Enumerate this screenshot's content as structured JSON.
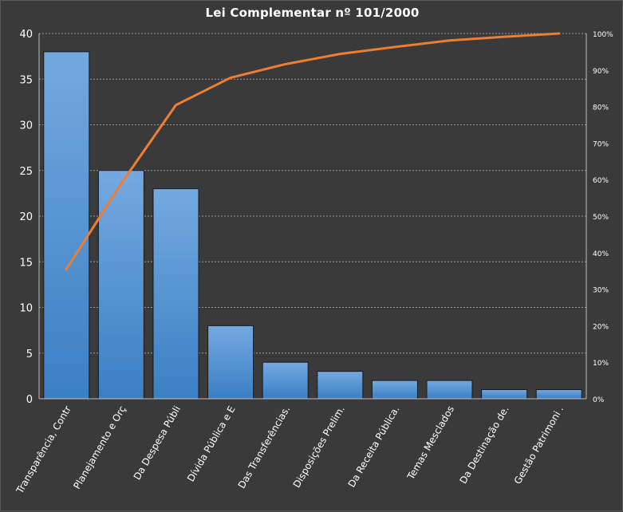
{
  "chart_data": {
    "type": "bar",
    "title": "Lei Complementar nº 101/2000",
    "categories": [
      "Transparência, Contr",
      "Planejamento e Orç",
      "Da Despesa Públi",
      "Dívida Pública e E",
      "Das Transferências.",
      "Disposições Prelim.",
      "Da Receita Pública.",
      "Temas Mesclados",
      "Da Destinação de.",
      "Gestão Patrimoni ."
    ],
    "values": [
      38,
      25,
      23,
      8,
      4,
      3,
      2,
      2,
      1,
      1
    ],
    "cumulative_percent": [
      35.5,
      58.9,
      80.4,
      87.9,
      91.6,
      94.4,
      96.3,
      98.1,
      99.1,
      100
    ],
    "ylim": [
      0,
      40
    ],
    "yticks": [
      0,
      5,
      10,
      15,
      20,
      25,
      30,
      35,
      40
    ],
    "y2lim": [
      0,
      100
    ],
    "y2ticks": [
      "0%",
      "10%",
      "20%",
      "30%",
      "40%",
      "50%",
      "60%",
      "70%",
      "80%",
      "90%",
      "100%"
    ],
    "grid": true,
    "legend": "none",
    "colors": {
      "bar_top": "#74a9e0",
      "bar_bottom": "#3b7fc4",
      "line": "#ed7d31",
      "grid": "#9a9a9a",
      "background": "#3a3a3a",
      "text": "#ffffff"
    }
  }
}
